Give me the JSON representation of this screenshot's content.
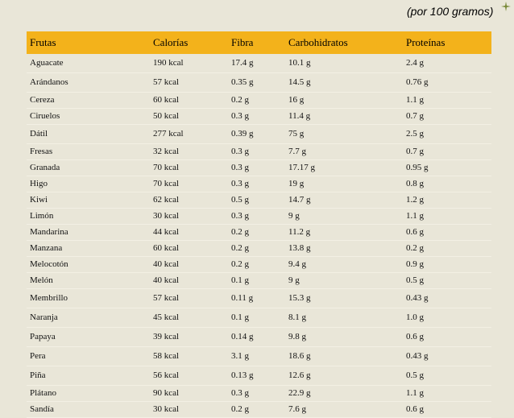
{
  "subtitle": "(por 100 gramos)",
  "headers": [
    "Frutas",
    "Calorías",
    "Fibra",
    "Carbohidratos",
    "Proteínas"
  ],
  "rows": [
    [
      "Aguacate",
      "190 kcal",
      "17.4 g",
      "10.1 g",
      "2.4 g"
    ],
    [
      "Arándanos",
      "57 kcal",
      "0.35 g",
      "14.5 g",
      "0.76 g"
    ],
    [
      "Cereza",
      "60 kcal",
      "0.2 g",
      "16 g",
      "1.1 g"
    ],
    [
      "Ciruelos",
      "50 kcal",
      "0.3 g",
      "11.4 g",
      "0.7 g"
    ],
    [
      "Dátil",
      "277 kcal",
      "0.39 g",
      "75 g",
      "2.5 g"
    ],
    [
      "Fresas",
      "32 kcal",
      "0.3 g",
      "7.7 g",
      "0.7 g"
    ],
    [
      "Granada",
      "70 kcal",
      "0.3 g",
      "17.17 g",
      "0.95 g"
    ],
    [
      "Higo",
      "70 kcal",
      "0.3 g",
      "19 g",
      "0.8 g"
    ],
    [
      "Kiwi",
      "62 kcal",
      "0.5 g",
      "14.7 g",
      "1.2 g"
    ],
    [
      "Limón",
      "30 kcal",
      "0.3 g",
      "9 g",
      "1.1 g"
    ],
    [
      "Mandarina",
      "44 kcal",
      "0.2 g",
      "11.2 g",
      "0.6 g"
    ],
    [
      "Manzana",
      "60 kcal",
      "0.2 g",
      "13.8 g",
      "0.2 g"
    ],
    [
      "Melocotón",
      "40 kcal",
      "0.2 g",
      "9.4 g",
      "0.9 g"
    ],
    [
      "Melón",
      "40 kcal",
      "0.1 g",
      "9 g",
      "0.5 g"
    ],
    [
      "Membrillo",
      "57 kcal",
      "0.11 g",
      "15.3 g",
      "0.43 g"
    ],
    [
      "Naranja",
      "45 kcal",
      "0.1 g",
      "8.1 g",
      "1.0 g"
    ],
    [
      "Papaya",
      "39 kcal",
      "0.14 g",
      "9.8 g",
      "0.6 g"
    ],
    [
      "Pera",
      "58 kcal",
      "3.1 g",
      "18.6 g",
      "0.43 g"
    ],
    [
      "Piña",
      "56 kcal",
      "0.13 g",
      "12.6 g",
      "0.5 g"
    ],
    [
      "Plátano",
      "90 kcal",
      "0.3 g",
      "22.9 g",
      "1.1 g"
    ],
    [
      "Sandía",
      "30 kcal",
      "0.2 g",
      "7.6 g",
      "0.6 g"
    ]
  ],
  "colors": {
    "header_bg": "#f3b21b",
    "page_bg": "#e9e6d8",
    "row_line": "#f3f0e4"
  }
}
